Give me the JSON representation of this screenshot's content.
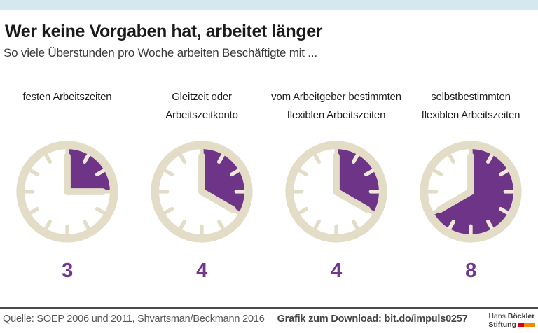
{
  "header": {
    "title": "Wer keine Vorgaben hat, arbeitet länger",
    "subtitle": "So viele Überstunden pro Woche arbeiten Beschäftigte mit ..."
  },
  "chart_data": {
    "type": "pie",
    "variant": "clock-face pictograms, purple wedge = overtime hours on a 12-hour dial",
    "title": "Wer keine Vorgaben hat, arbeitet länger",
    "subtitle": "So viele Überstunden pro Woche arbeiten Beschäftigte mit ...",
    "unit": "Überstunden pro Woche",
    "dial_max": 12,
    "categories": [
      "festen Arbeitszeiten",
      "Gleitzeit oder Arbeitszeitkonto",
      "vom Arbeitgeber bestimmten flexiblen Arbeitszeiten",
      "selbstbestimmten flexiblen Arbeitszeiten"
    ],
    "values": [
      3,
      4,
      4,
      8
    ]
  },
  "columns": [
    {
      "label_lines": [
        "festen Arbeitszeiten"
      ],
      "hours": 3,
      "value_label": "3"
    },
    {
      "label_lines": [
        "Gleitzeit oder",
        "Arbeitszeitkonto"
      ],
      "hours": 4,
      "value_label": "4"
    },
    {
      "label_lines": [
        "vom Arbeitgeber bestimmten",
        "flexiblen Arbeitszeiten"
      ],
      "hours": 4,
      "value_label": "4"
    },
    {
      "label_lines": [
        "selbstbestimmten",
        "flexiblen Arbeitszeiten"
      ],
      "hours": 8,
      "value_label": "8"
    }
  ],
  "footer": {
    "source": "Quelle: SOEP 2006 und 2011, Shvartsman/Beckmann 2016",
    "download": "Grafik zum Download: bit.do/impuls0257"
  },
  "logo": {
    "line1_normal": "Hans ",
    "line1_bold": "Böckler",
    "line2_bold": "Stiftung"
  },
  "colors": {
    "topbar": "#d5e8f0",
    "wedge_purple": "#6d3487",
    "ring_beige": "#e3ddc8",
    "tick_cream": "#efe9d9",
    "number_purple": "#71378f",
    "logo_red": "#d6001c",
    "logo_orange": "#f18a00"
  }
}
